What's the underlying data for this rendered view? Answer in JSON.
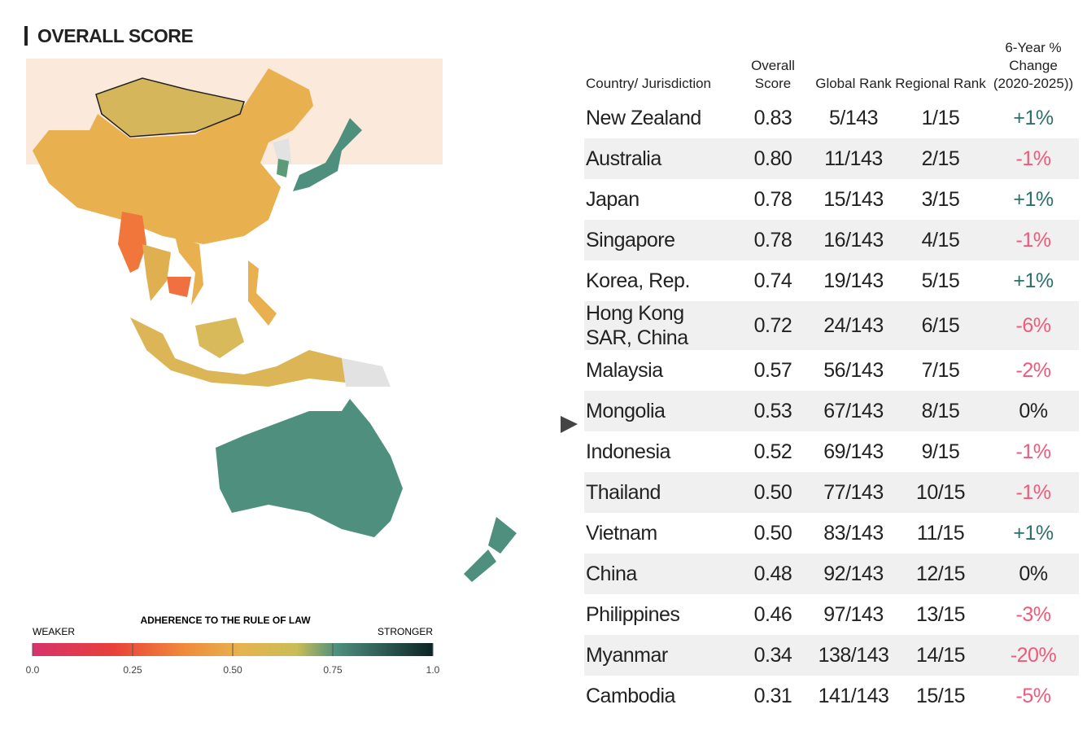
{
  "title": "OVERALL SCORE",
  "legend": {
    "title": "ADHERENCE TO THE RULE OF LAW",
    "low": "WEAKER",
    "high": "STRONGER",
    "ticks": [
      {
        "value": 0,
        "label": "0.0"
      },
      0.25,
      {
        "value": 0.5,
        "label": "0.50"
      },
      0.75,
      {
        "value": 1,
        "label": "1.0"
      }
    ]
  },
  "table": {
    "headers": [
      "Country/ Jurisdiction",
      "Overall Score",
      "Global Rank",
      "Regional Rank",
      "6-Year % Change (2020-2025))"
    ],
    "rows": [
      [
        "New Zealand",
        "0.83",
        "5/143",
        "1/15",
        "+1%"
      ],
      [
        "Australia",
        "0.80",
        "11/143",
        "2/15",
        "-1%"
      ],
      [
        "Japan",
        "0.78",
        "15/143",
        "3/15",
        "+1%"
      ],
      [
        "Singapore",
        "0.78",
        "16/143",
        "4/15",
        "-1%"
      ],
      [
        "Korea, Rep.",
        "0.74",
        "19/143",
        "5/15",
        "+1%"
      ],
      [
        "Hong Kong SAR, China",
        "0.72",
        "24/143",
        "6/15",
        "-6%"
      ],
      [
        "Malaysia",
        "0.57",
        "56/143",
        "7/15",
        "-2%"
      ],
      [
        "Mongolia",
        "0.53",
        "67/143",
        "8/15",
        "0%"
      ],
      [
        "Indonesia",
        "0.52",
        "69/143",
        "9/15",
        "-1%"
      ],
      [
        "Thailand",
        "0.50",
        "77/143",
        "10/15",
        "-1%"
      ],
      [
        "Vietnam",
        "0.50",
        "83/143",
        "11/15",
        "+1%"
      ],
      [
        "China",
        "0.48",
        "92/143",
        "12/15",
        "0%"
      ],
      [
        "Philippines",
        "0.46",
        "97/143",
        "13/15",
        "-3%"
      ],
      [
        "Myanmar",
        "0.34",
        "138/143",
        "14/15",
        "-20%"
      ],
      [
        "Cambodia",
        "0.31",
        "141/143",
        "15/15",
        "-5%"
      ]
    ]
  }
}
